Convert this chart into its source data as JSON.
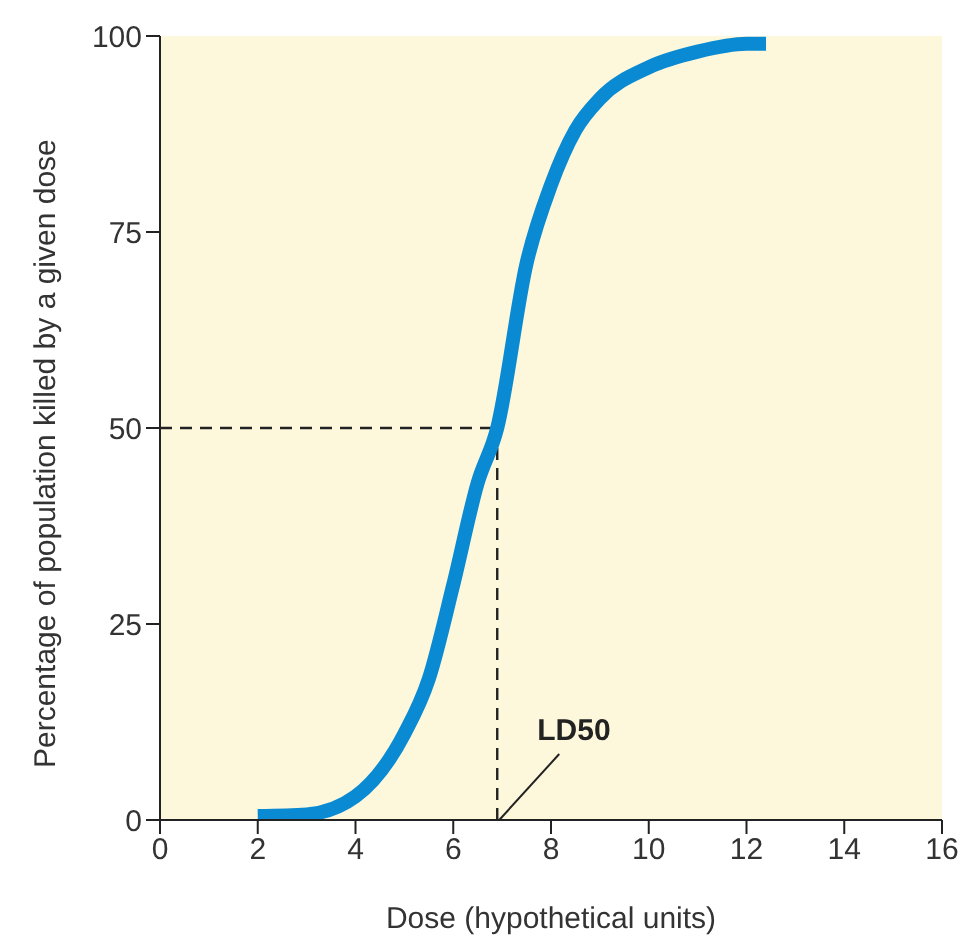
{
  "chart_data": {
    "type": "line",
    "xlabel": "Dose (hypothetical units)",
    "ylabel": "Percentage of population killed by a given dose",
    "x": [
      2,
      3,
      4,
      5,
      5.5,
      6,
      6.5,
      6.9,
      7.5,
      8,
      8.5,
      9,
      10,
      11,
      12,
      12.4
    ],
    "series": [
      {
        "color": "#0a8ad2",
        "values": [
          0.5,
          0.7,
          3,
          11,
          18,
          30,
          43,
          50,
          71,
          81,
          88,
          92,
          96,
          98,
          99,
          99
        ]
      }
    ],
    "xlim": [
      0,
      16
    ],
    "xticks": [
      0,
      2,
      4,
      6,
      8,
      10,
      12,
      14,
      16
    ],
    "ylim": [
      0,
      100
    ],
    "yticks": [
      0,
      25,
      50,
      75,
      100
    ],
    "ref_lines": [
      {
        "axis": "x",
        "value": 6.9,
        "line_style": "dashed",
        "color": "#222222"
      },
      {
        "axis": "y",
        "value": 50,
        "line_style": "dashed",
        "color": "#222222"
      }
    ],
    "annotations": [
      {
        "text": "LD50",
        "x": 6.9,
        "y": 0
      }
    ],
    "grid": false,
    "legend": false,
    "marker": "none",
    "line_style": "solid"
  }
}
